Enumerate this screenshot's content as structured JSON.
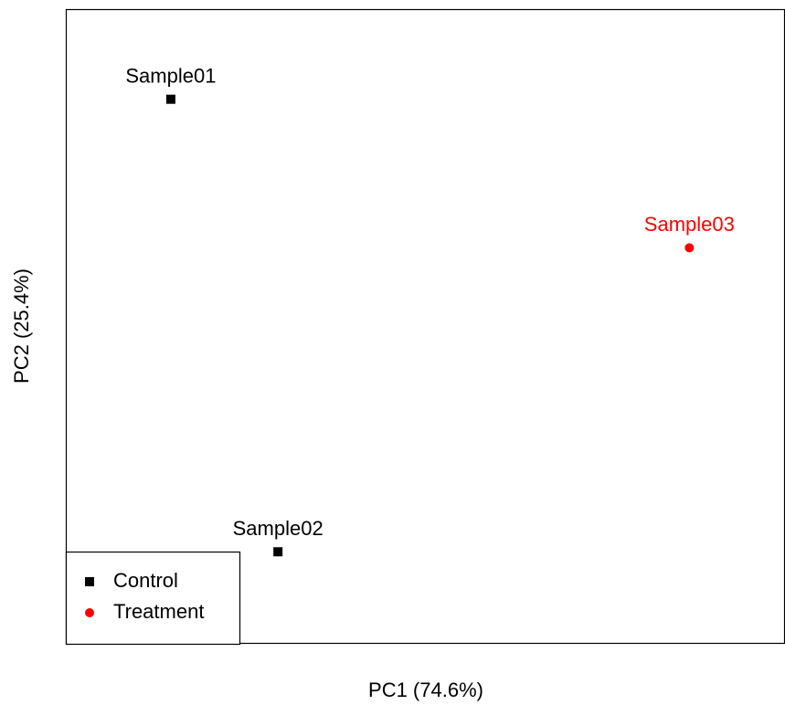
{
  "chart_data": {
    "type": "scatter",
    "x_label": "PC1 (74.6%)",
    "y_label": "PC2 (25.4%)",
    "xlim": [
      0,
      100
    ],
    "ylim": [
      0,
      100
    ],
    "legend": "bottom-left",
    "series": [
      {
        "name": "Control",
        "color": "#000000",
        "marker": "square",
        "labels": [
          "Sample01",
          "Sample02"
        ],
        "x": [
          14.6,
          29.5
        ],
        "values": [
          85.8,
          14.5
        ]
      },
      {
        "name": "Treatment",
        "color": "#ff0000",
        "marker": "circle",
        "labels": [
          "Sample03"
        ],
        "x": [
          86.7
        ],
        "values": [
          62.4
        ]
      }
    ]
  }
}
